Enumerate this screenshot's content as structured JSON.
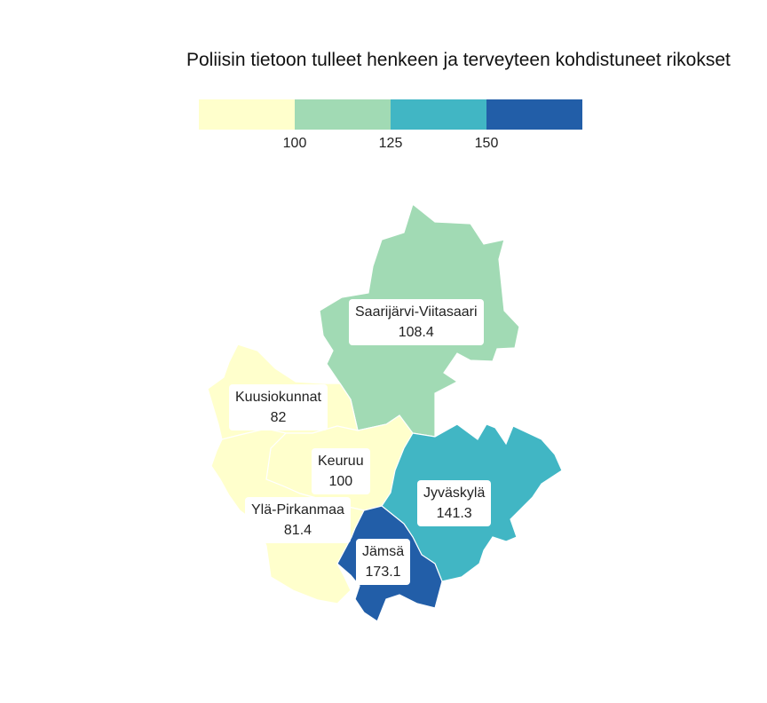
{
  "title": "Poliisin tietoon tulleet henkeen ja terveyteen kohdistuneet rikokset",
  "legend": {
    "colors": [
      "#ffffcc",
      "#a1dab4",
      "#41b6c4",
      "#225ea8"
    ],
    "ticks": [
      "100",
      "125",
      "150"
    ]
  },
  "regions": [
    {
      "name": "Saarijärvi-Viitasaari",
      "value": "108.4",
      "color": "#a1dab4"
    },
    {
      "name": "Kuusiokunnat",
      "value": "82",
      "color": "#ffffcc"
    },
    {
      "name": "Keuruu",
      "value": "100",
      "color": "#ffffcc"
    },
    {
      "name": "Ylä-Pirkanmaa",
      "value": "81.4",
      "color": "#ffffcc"
    },
    {
      "name": "Jyväskylä",
      "value": "141.3",
      "color": "#41b6c4"
    },
    {
      "name": "Jämsä",
      "value": "173.1",
      "color": "#225ea8"
    }
  ]
}
